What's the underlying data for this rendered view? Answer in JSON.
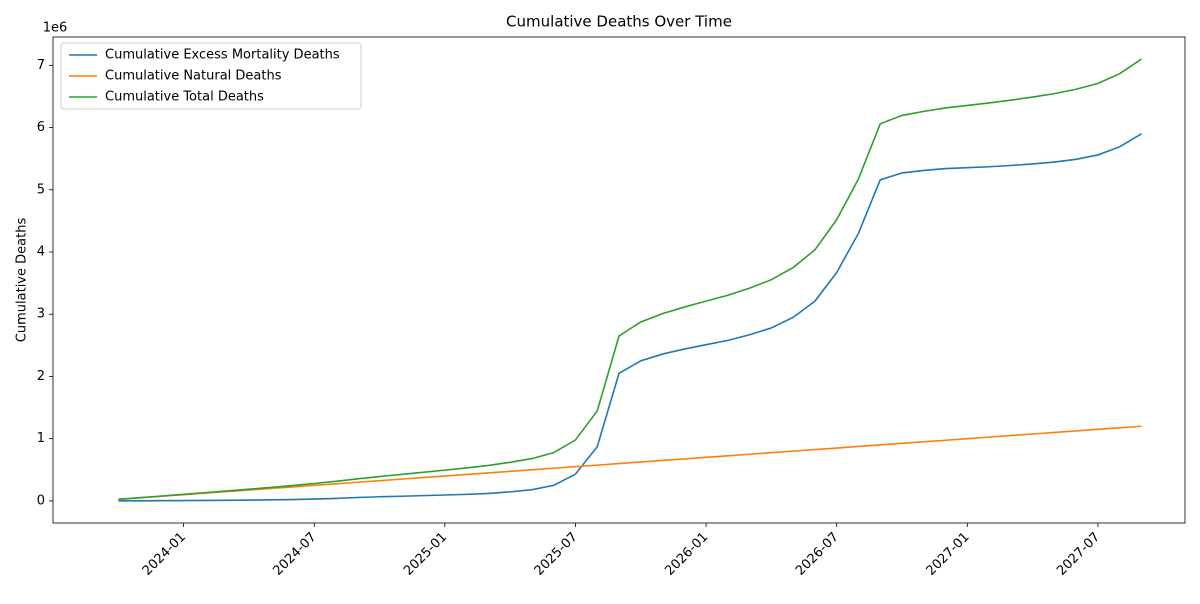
{
  "chart_data": {
    "type": "line",
    "title": "Cumulative Deaths Over Time",
    "ylabel": "Cumulative Deaths",
    "y_offset_text": "1e6",
    "x": [
      "2023-10",
      "2023-11",
      "2023-12",
      "2024-01",
      "2024-02",
      "2024-03",
      "2024-04",
      "2024-05",
      "2024-06",
      "2024-07",
      "2024-08",
      "2024-09",
      "2024-10",
      "2024-11",
      "2024-12",
      "2025-01",
      "2025-02",
      "2025-03",
      "2025-04",
      "2025-05",
      "2025-06",
      "2025-07",
      "2025-08",
      "2025-09",
      "2025-10",
      "2025-11",
      "2025-12",
      "2026-01",
      "2026-02",
      "2026-03",
      "2026-04",
      "2026-05",
      "2026-06",
      "2026-07",
      "2026-08",
      "2026-09",
      "2026-10",
      "2026-11",
      "2026-12",
      "2027-01",
      "2027-02",
      "2027-03",
      "2027-04",
      "2027-05",
      "2027-06",
      "2027-07",
      "2027-08",
      "2027-09"
    ],
    "series": [
      {
        "name": "Cumulative Excess Mortality Deaths",
        "color": "#1f77b4",
        "values": [
          0,
          0.002,
          0.004,
          0.006,
          0.008,
          0.01,
          0.013,
          0.017,
          0.022,
          0.03,
          0.04,
          0.055,
          0.067,
          0.075,
          0.085,
          0.095,
          0.105,
          0.12,
          0.145,
          0.18,
          0.25,
          0.43,
          0.87,
          2.05,
          2.25,
          2.36,
          2.44,
          2.51,
          2.58,
          2.67,
          2.78,
          2.95,
          3.21,
          3.67,
          4.3,
          5.16,
          5.27,
          5.31,
          5.34,
          5.355,
          5.37,
          5.39,
          5.415,
          5.445,
          5.49,
          5.56,
          5.69,
          5.9
        ]
      },
      {
        "name": "Cumulative Natural Deaths",
        "color": "#ff7f0e",
        "values": [
          0.025,
          0.05,
          0.075,
          0.1,
          0.125,
          0.15,
          0.175,
          0.2,
          0.225,
          0.25,
          0.275,
          0.3,
          0.325,
          0.35,
          0.375,
          0.4,
          0.425,
          0.45,
          0.475,
          0.5,
          0.525,
          0.55,
          0.575,
          0.6,
          0.625,
          0.65,
          0.675,
          0.7,
          0.725,
          0.75,
          0.775,
          0.8,
          0.825,
          0.85,
          0.875,
          0.9,
          0.925,
          0.95,
          0.975,
          1.0,
          1.025,
          1.05,
          1.075,
          1.1,
          1.125,
          1.15,
          1.175,
          1.2
        ]
      },
      {
        "name": "Cumulative Total Deaths",
        "color": "#2ca02c",
        "values": [
          0.025,
          0.052,
          0.079,
          0.106,
          0.133,
          0.16,
          0.188,
          0.217,
          0.247,
          0.28,
          0.315,
          0.355,
          0.392,
          0.425,
          0.46,
          0.495,
          0.53,
          0.57,
          0.62,
          0.68,
          0.775,
          0.98,
          1.445,
          2.65,
          2.875,
          3.01,
          3.115,
          3.21,
          3.305,
          3.42,
          3.555,
          3.75,
          4.035,
          4.52,
          5.175,
          6.06,
          6.195,
          6.26,
          6.315,
          6.355,
          6.395,
          6.44,
          6.49,
          6.545,
          6.615,
          6.71,
          6.865,
          7.1
        ]
      }
    ],
    "xlim": [
      "2023-07",
      "2027-11"
    ],
    "xticks": [
      "2024-01",
      "2024-07",
      "2025-01",
      "2025-07",
      "2026-01",
      "2026-07",
      "2027-01",
      "2027-07"
    ],
    "ylim": [
      -0.355,
      7.455
    ],
    "yticks": [
      0,
      1,
      2,
      3,
      4,
      5,
      6,
      7
    ],
    "legend": "upper left",
    "grid": false
  }
}
